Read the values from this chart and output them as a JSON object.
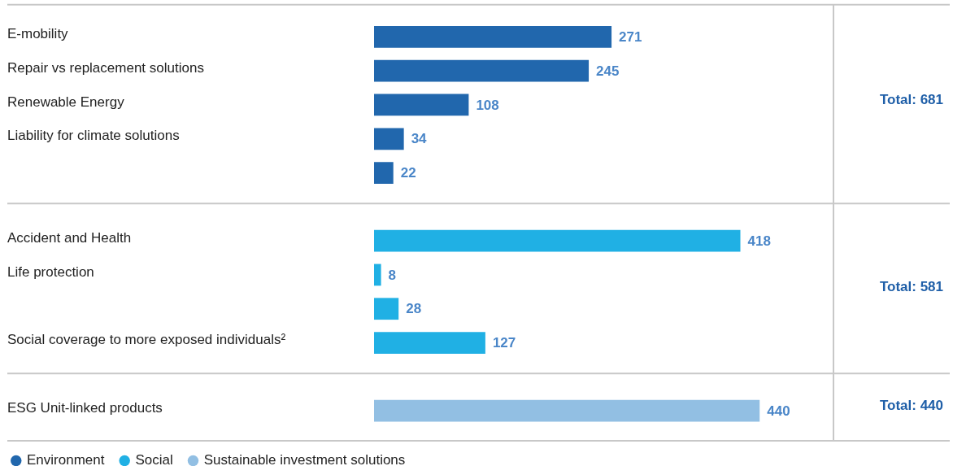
{
  "chart_data": {
    "type": "bar",
    "orientation": "horizontal",
    "categories": [
      "E-mobility",
      "Repair vs replacement solutions",
      "Renewable Energy",
      "Liability for climate solutions",
      null,
      "Accident and Health",
      "Life protection",
      null,
      "Social coverage to more exposed individuals²",
      "ESG Unit-linked products"
    ],
    "series": [
      {
        "name": "Environment",
        "color": "#2167ad",
        "values": [
          271,
          245,
          108,
          34,
          22,
          null,
          null,
          null,
          null,
          null
        ]
      },
      {
        "name": "Social",
        "color": "#20b0e4",
        "values": [
          null,
          null,
          null,
          null,
          null,
          418,
          8,
          28,
          127,
          null
        ]
      },
      {
        "name": "Sustainable investment solutions",
        "color": "#92bfe3",
        "values": [
          null,
          null,
          null,
          null,
          null,
          null,
          null,
          null,
          null,
          440
        ]
      }
    ],
    "data_labels": true,
    "legend": "bottom left",
    "annotations": [
      "Total: 681",
      "Total: 581",
      "Total: 440"
    ]
  }
}
